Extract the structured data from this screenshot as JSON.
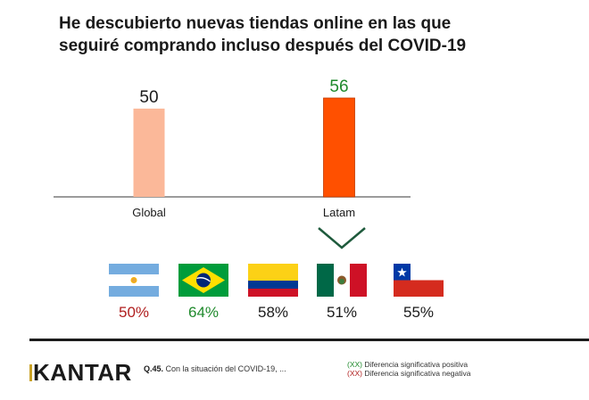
{
  "title": {
    "line1": "He descubierto nuevas tiendas online en las que",
    "line2": "seguiré comprando incluso después del COVID-19"
  },
  "chart_data": {
    "type": "bar",
    "title": "He descubierto nuevas tiendas online en las que seguiré comprando incluso después del COVID-19",
    "categories": [
      "Global",
      "Latam"
    ],
    "values": [
      50,
      56
    ],
    "value_labels": [
      "50",
      "56"
    ],
    "value_label_colors": [
      "#1a1a1a",
      "#1f8a2c"
    ],
    "bar_colors": [
      "#fbb899",
      "#ff5000"
    ],
    "xlabel": "",
    "ylabel": "",
    "ylim": [
      0,
      60
    ],
    "grid": false,
    "legend": "none",
    "breakdown": {
      "parent": "Latam",
      "items": [
        {
          "country": "Argentina",
          "flag": "argentina-flag",
          "value": 50,
          "label": "50%",
          "color": "#b01e1e",
          "significance": "negative"
        },
        {
          "country": "Brasil",
          "flag": "brazil-flag",
          "value": 64,
          "label": "64%",
          "color": "#1f8a2c",
          "significance": "positive"
        },
        {
          "country": "Colombia",
          "flag": "colombia-flag",
          "value": 58,
          "label": "58%",
          "color": "#1a1a1a",
          "significance": "none"
        },
        {
          "country": "México",
          "flag": "mexico-flag",
          "value": 51,
          "label": "51%",
          "color": "#1a1a1a",
          "significance": "none"
        },
        {
          "country": "Chile",
          "flag": "chile-flag",
          "value": 55,
          "label": "55%",
          "color": "#1a1a1a",
          "significance": "none"
        }
      ]
    }
  },
  "footer": {
    "logo": "KANTAR",
    "question_code": "Q.45.",
    "question_text": "Con la situación del COVID-19, ...",
    "legend": {
      "positive_marker": "(XX)",
      "positive_text": "Diferencia significativa positiva",
      "negative_marker": "(XX)",
      "negative_text": "Diferencia significativa negativa"
    }
  },
  "colors": {
    "positive": "#1f8a2c",
    "negative": "#b01e1e",
    "chevron": "#1e5a3c",
    "axis": "#7a7a7a"
  }
}
